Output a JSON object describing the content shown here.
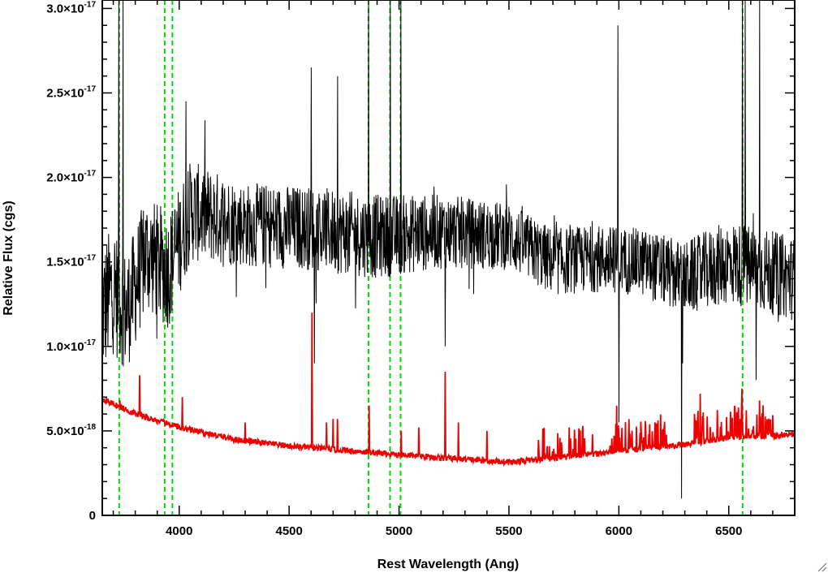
{
  "chart_data": {
    "type": "line",
    "title": "",
    "xlabel": "Rest Wavelength (Ang)",
    "ylabel": "Relative Flux (cgs)",
    "xlim": [
      3650,
      6800
    ],
    "ylim": [
      0,
      3.05e-17
    ],
    "grid": false,
    "x_ticks": [
      {
        "value": 4000,
        "label": "4000"
      },
      {
        "value": 4500,
        "label": "4500"
      },
      {
        "value": 5000,
        "label": "5000"
      },
      {
        "value": 5500,
        "label": "5500"
      },
      {
        "value": 6000,
        "label": "6000"
      },
      {
        "value": 6500,
        "label": "6500"
      }
    ],
    "y_ticks": [
      {
        "value": 0,
        "label": "0",
        "mantissa": "0",
        "exponent": ""
      },
      {
        "value": 5e-18,
        "label": "5.0×10-18",
        "mantissa": "5.0×10",
        "exponent": "-18"
      },
      {
        "value": 1e-17,
        "label": "1.0×10-17",
        "mantissa": "1.0×10",
        "exponent": "-17"
      },
      {
        "value": 1.5e-17,
        "label": "1.5×10-17",
        "mantissa": "1.5×10",
        "exponent": "-17"
      },
      {
        "value": 2e-17,
        "label": "2.0×10-17",
        "mantissa": "2.0×10",
        "exponent": "-17"
      },
      {
        "value": 2.5e-17,
        "label": "2.5×10-17",
        "mantissa": "2.5×10",
        "exponent": "-17"
      },
      {
        "value": 3e-17,
        "label": "3.0×10-17",
        "mantissa": "3.0×10",
        "exponent": "-17"
      }
    ],
    "vlines": {
      "color": "#00dd00",
      "style": "dashed",
      "x": [
        3727,
        3934,
        3969,
        4861,
        4959,
        5007,
        6563
      ]
    },
    "series": [
      {
        "color": "#000000",
        "role": "spectrum",
        "envelope": [
          [
            3650,
            1.2e-17,
            4e-18
          ],
          [
            3700,
            1.35e-17,
            4e-18
          ],
          [
            3760,
            1.2e-17,
            3.5e-18
          ],
          [
            3850,
            1.55e-17,
            3.5e-18
          ],
          [
            3950,
            1.45e-17,
            3.5e-18
          ],
          [
            4050,
            1.8e-17,
            3e-18
          ],
          [
            4300,
            1.72e-17,
            2.5e-18
          ],
          [
            4600,
            1.7e-17,
            2.5e-18
          ],
          [
            4900,
            1.65e-17,
            2.5e-18
          ],
          [
            5200,
            1.68e-17,
            2.2e-18
          ],
          [
            5500,
            1.65e-17,
            2e-18
          ],
          [
            5700,
            1.5e-17,
            2e-18
          ],
          [
            5900,
            1.52e-17,
            2e-18
          ],
          [
            6100,
            1.5e-17,
            2e-18
          ],
          [
            6300,
            1.4e-17,
            2.2e-18
          ],
          [
            6500,
            1.5e-17,
            2.5e-18
          ],
          [
            6800,
            1.4e-17,
            2.5e-18
          ]
        ],
        "spikes": [
          [
            3725,
            3.05e-17
          ],
          [
            3745,
            3.05e-17
          ],
          [
            4030,
            2.45e-17
          ],
          [
            4600,
            2.65e-17
          ],
          [
            4615,
            9e-18
          ],
          [
            4720,
            2.6e-17
          ],
          [
            4862,
            3.05e-17
          ],
          [
            4960,
            3.05e-17
          ],
          [
            5008,
            3.05e-17
          ],
          [
            5210,
            1e-17
          ],
          [
            5995,
            2.9e-17
          ],
          [
            6000,
            5.5e-18
          ],
          [
            6285,
            1e-18
          ],
          [
            6290,
            9e-18
          ],
          [
            6562,
            3.05e-17
          ],
          [
            6575,
            3.05e-17
          ],
          [
            6625,
            8e-18
          ],
          [
            6640,
            3.05e-17
          ]
        ]
      },
      {
        "color": "#ee0000",
        "role": "error",
        "baseline": [
          [
            3650,
            6.9e-18
          ],
          [
            3800,
            6e-18
          ],
          [
            4000,
            5.2e-18
          ],
          [
            4250,
            4.5e-18
          ],
          [
            4500,
            4.1e-18
          ],
          [
            4800,
            3.8e-18
          ],
          [
            5000,
            3.6e-18
          ],
          [
            5200,
            3.4e-18
          ],
          [
            5500,
            3.15e-18
          ],
          [
            5800,
            3.5e-18
          ],
          [
            6000,
            3.8e-18
          ],
          [
            6300,
            4.2e-18
          ],
          [
            6500,
            4.6e-18
          ],
          [
            6800,
            4.8e-18
          ]
        ],
        "spikes": [
          [
            3730,
            6.8e-18
          ],
          [
            3820,
            8.3e-18
          ],
          [
            4015,
            7e-18
          ],
          [
            4300,
            5.5e-18
          ],
          [
            4605,
            1.2e-17
          ],
          [
            4670,
            5.5e-18
          ],
          [
            4700,
            5.7e-18
          ],
          [
            4720,
            5.7e-18
          ],
          [
            4865,
            6.5e-18
          ],
          [
            5010,
            5e-18
          ],
          [
            5090,
            5.2e-18
          ],
          [
            5210,
            8.5e-18
          ],
          [
            5270,
            5.5e-18
          ],
          [
            5400,
            5e-18
          ],
          [
            5880,
            4.8e-18
          ],
          [
            5990,
            6.5e-18
          ],
          [
            6370,
            7.2e-18
          ],
          [
            6560,
            7.5e-18
          ],
          [
            6640,
            6.8e-18
          ]
        ],
        "noisy_ranges": [
          [
            5630,
            5850
          ],
          [
            5960,
            6220
          ],
          [
            6340,
            6700
          ]
        ]
      }
    ]
  }
}
